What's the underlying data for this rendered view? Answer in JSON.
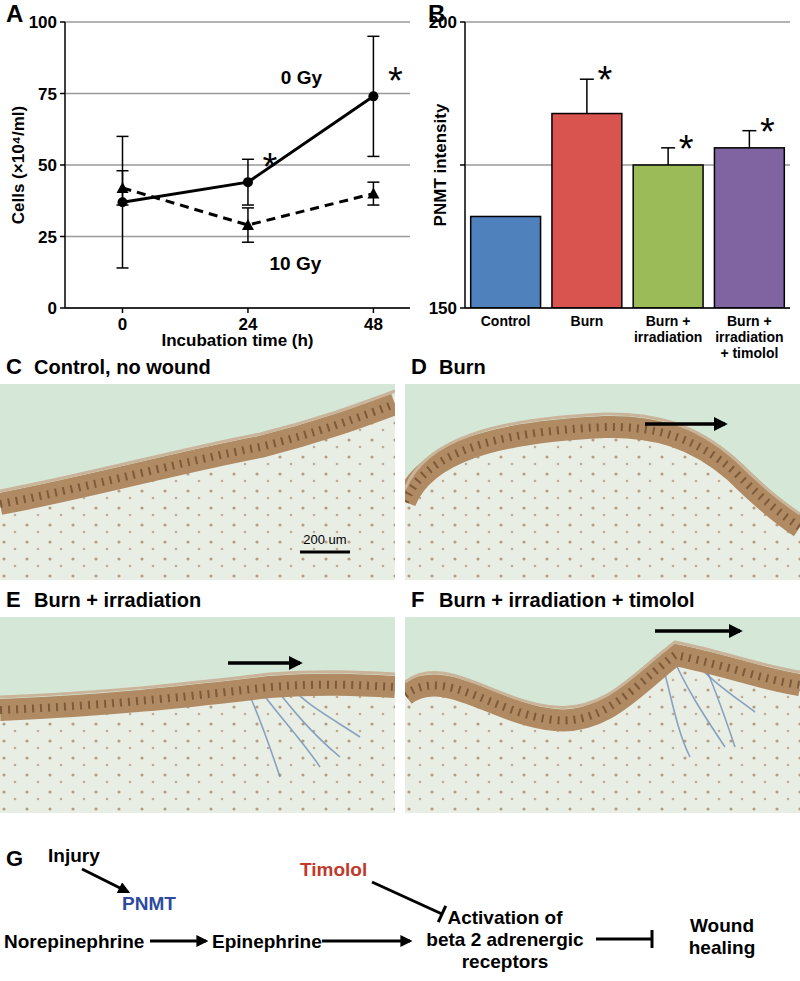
{
  "chart_data": [
    {
      "panel_label": "A",
      "type": "line",
      "x_label": "Incubation time (h)",
      "y_label": "Cells (×10⁴/ml)",
      "x": [
        0,
        24,
        48
      ],
      "xlim": [
        -11,
        55
      ],
      "xticks": [
        0,
        24,
        48
      ],
      "ylim": [
        0,
        100
      ],
      "yticks": [
        0,
        25,
        50,
        75,
        100
      ],
      "grid": true,
      "series": [
        {
          "name": "0 Gy",
          "color": "#000000",
          "line_style": "solid",
          "marker": "circle",
          "values": [
            37,
            44,
            74
          ],
          "errors": [
            23,
            8,
            21
          ]
        },
        {
          "name": "10 Gy",
          "color": "#000000",
          "line_style": "dashed",
          "marker": "triangle",
          "values": [
            42,
            29,
            40
          ],
          "errors": [
            6,
            6,
            4
          ]
        }
      ],
      "annotations": [
        {
          "text": "*",
          "x": 24
        },
        {
          "text": "*",
          "x": 48
        }
      ]
    },
    {
      "panel_label": "B",
      "type": "bar",
      "y_label": "PNMT intensity",
      "categories": [
        "Control",
        "Burn",
        "Burn + irradiation",
        "Burn + irradiation + timolol"
      ],
      "values": [
        166,
        184,
        175,
        178
      ],
      "errors": [
        null,
        6,
        3,
        3
      ],
      "colors": [
        "#4f81bd",
        "#d9534f",
        "#9bbb59",
        "#8064a2"
      ],
      "ylim": [
        150,
        200
      ],
      "yticks": [
        150,
        {
          "value": 175,
          "label": null
        },
        200
      ],
      "grid": true,
      "annotations": [
        {
          "text": "*",
          "category": "Burn"
        },
        {
          "text": "*",
          "category": "Burn + irradiation"
        },
        {
          "text": "*",
          "category": "Burn + irradiation + timolol"
        }
      ]
    }
  ],
  "panels": [
    {
      "label": "C",
      "title": "Control, no wound",
      "scale_bar": "200 um"
    },
    {
      "label": "D",
      "title": "Burn"
    },
    {
      "label": "E",
      "title": "Burn + irradiation"
    },
    {
      "label": "F",
      "title": "Burn + irradiation + timolol"
    }
  ],
  "diagram": {
    "label": "G",
    "nodes": [
      {
        "label": "Injury"
      },
      {
        "label": "PNMT",
        "color": "#2e4a9e"
      },
      {
        "label": "Norepinephrine"
      },
      {
        "label": "Epinephrine"
      },
      {
        "label": "Timolol",
        "color": "#c0392b"
      },
      {
        "label": "Activation of beta 2 adrenergic receptors"
      },
      {
        "label": "Wound healing"
      }
    ],
    "edges": [
      {
        "from": 0,
        "to": 1,
        "type": "arrow"
      },
      {
        "from": 2,
        "to": 3,
        "type": "arrow"
      },
      {
        "from": 3,
        "to": 5,
        "type": "arrow"
      },
      {
        "from": 4,
        "to": 5,
        "type": "inhibit"
      },
      {
        "from": 5,
        "to": 6,
        "type": "inhibit"
      }
    ]
  }
}
